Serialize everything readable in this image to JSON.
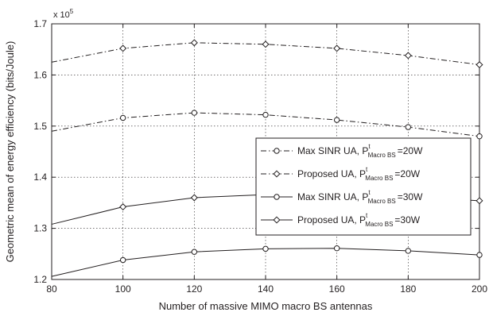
{
  "chart_data": {
    "type": "line",
    "title": "",
    "xlabel": "Number of massive MIMO macro BS antennas",
    "ylabel": "Geometric mean of energy efficiency (bits/Joule)",
    "y_multiplier": "x 10",
    "y_multiplier_exp": "5",
    "xlim": [
      80,
      200
    ],
    "ylim": [
      1.2,
      1.7
    ],
    "x_ticks": [
      80,
      100,
      120,
      140,
      160,
      180,
      200
    ],
    "x_tick_labels": [
      "80",
      "100",
      "120",
      "140",
      "160",
      "180",
      "200"
    ],
    "y_ticks": [
      1.2,
      1.3,
      1.4,
      1.5,
      1.6,
      1.7
    ],
    "y_tick_labels": [
      "1.2",
      "1.3",
      "1.4",
      "1.5",
      "1.6",
      "1.7"
    ],
    "grid": true,
    "legend_position": "right",
    "x": [
      80,
      100,
      120,
      140,
      160,
      180,
      200
    ],
    "series": [
      {
        "label_main": "Max SINR UA, P",
        "label_sup": "t",
        "label_sub": "Macro BS",
        "label_tail": "=20W",
        "line_style": "dashdot",
        "marker": "circle",
        "values": [
          1.49,
          1.516,
          1.526,
          1.522,
          1.512,
          1.498,
          1.48
        ]
      },
      {
        "label_main": "Proposed UA, P",
        "label_sup": "t",
        "label_sub": "Macro BS",
        "label_tail": "=20W",
        "line_style": "dashdot",
        "marker": "diamond",
        "values": [
          1.625,
          1.652,
          1.663,
          1.66,
          1.652,
          1.638,
          1.62
        ]
      },
      {
        "label_main": "Max SINR UA, P",
        "label_sup": "t",
        "label_sub": "Macro BS",
        "label_tail": "=30W",
        "line_style": "solid",
        "marker": "circle",
        "values": [
          1.206,
          1.238,
          1.254,
          1.26,
          1.261,
          1.256,
          1.248
        ]
      },
      {
        "label_main": "Proposed UA, P",
        "label_sup": "t",
        "label_sub": "Macro BS",
        "label_tail": "=30W",
        "line_style": "solid",
        "marker": "diamond",
        "values": [
          1.308,
          1.342,
          1.36,
          1.366,
          1.367,
          1.362,
          1.354
        ]
      }
    ]
  }
}
